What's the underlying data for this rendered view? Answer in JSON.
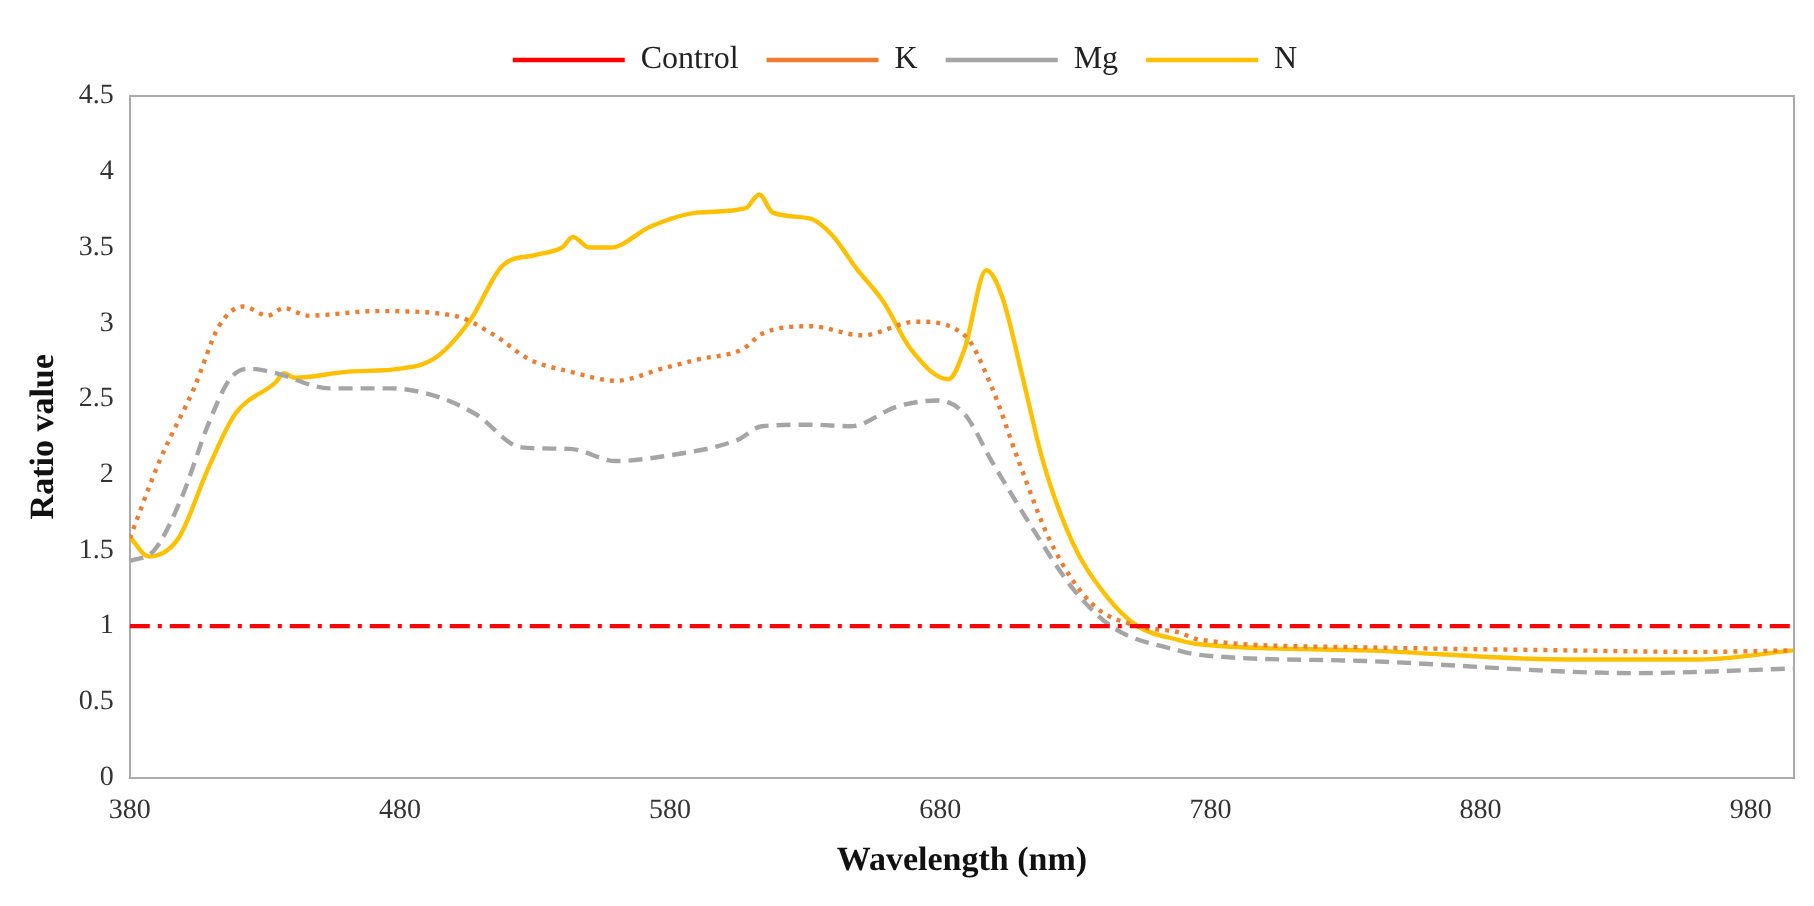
{
  "chart_data": {
    "type": "line",
    "xlabel": "Wavelength (nm)",
    "ylabel": "Ratio value",
    "xlim": [
      380,
      996
    ],
    "xticks": [
      380,
      480,
      580,
      680,
      780,
      880,
      980
    ],
    "ylim": [
      0,
      4.5
    ],
    "yticks": [
      0,
      0.5,
      1,
      1.5,
      2,
      2.5,
      3,
      3.5,
      4,
      4.5
    ],
    "grid": false,
    "legend": "top",
    "marker": "none",
    "series": [
      {
        "name": "Control",
        "color": "#ff0000",
        "line_style": "dashdot",
        "x": [
          380,
          996
        ],
        "values": [
          1,
          1
        ]
      },
      {
        "name": "K",
        "color": "#ed7d31",
        "line_style": "dotted",
        "x": [
          380,
          391,
          404,
          413,
          422,
          431,
          437,
          446,
          471,
          500,
          515,
          528,
          543,
          560,
          577,
          590,
          607,
          614,
          632,
          651,
          671,
          689,
          699,
          709,
          721,
          736,
          753,
          768,
          776,
          837,
          912,
          961,
          996
        ],
        "values": [
          1.58,
          2.09,
          2.58,
          2.98,
          3.11,
          3.05,
          3.1,
          3.05,
          3.08,
          3.05,
          2.92,
          2.76,
          2.68,
          2.62,
          2.7,
          2.76,
          2.83,
          2.93,
          2.98,
          2.92,
          3.01,
          2.92,
          2.58,
          2.09,
          1.55,
          1.15,
          1.0,
          0.96,
          0.91,
          0.86,
          0.84,
          0.83,
          0.84
        ]
      },
      {
        "name": "Mg",
        "color": "#a5a5a5",
        "line_style": "dashed",
        "x": [
          380,
          389,
          399,
          409,
          417,
          424,
          434,
          454,
          476,
          493,
          508,
          525,
          543,
          560,
          577,
          605,
          614,
          632,
          647,
          664,
          679,
          689,
          699,
          714,
          729,
          744,
          768,
          776,
          837,
          937,
          996
        ],
        "values": [
          1.43,
          1.5,
          1.84,
          2.33,
          2.63,
          2.7,
          2.67,
          2.57,
          2.57,
          2.52,
          2.4,
          2.18,
          2.17,
          2.09,
          2.12,
          2.23,
          2.32,
          2.33,
          2.32,
          2.45,
          2.49,
          2.4,
          2.09,
          1.65,
          1.25,
          0.99,
          0.84,
          0.81,
          0.77,
          0.69,
          0.72
        ]
      },
      {
        "name": "N",
        "color": "#ffc000",
        "line_style": "solid",
        "x": [
          380,
          387,
          398,
          409,
          419,
          434,
          437,
          441,
          461,
          480,
          493,
          506,
          518,
          530,
          540,
          544,
          550,
          558,
          573,
          590,
          608,
          613,
          618,
          632,
          640,
          649,
          659,
          669,
          683,
          689,
          697,
          703,
          710,
          718,
          729,
          741,
          753,
          768,
          776,
          837,
          912,
          961,
          996
        ],
        "values": [
          1.59,
          1.46,
          1.58,
          2.04,
          2.4,
          2.61,
          2.67,
          2.64,
          2.68,
          2.7,
          2.77,
          3.02,
          3.38,
          3.45,
          3.5,
          3.57,
          3.5,
          3.5,
          3.64,
          3.73,
          3.76,
          3.85,
          3.73,
          3.69,
          3.58,
          3.36,
          3.14,
          2.83,
          2.63,
          2.83,
          3.35,
          3.17,
          2.68,
          2.09,
          1.55,
          1.21,
          1.0,
          0.91,
          0.88,
          0.84,
          0.78,
          0.78,
          0.84
        ]
      }
    ]
  }
}
